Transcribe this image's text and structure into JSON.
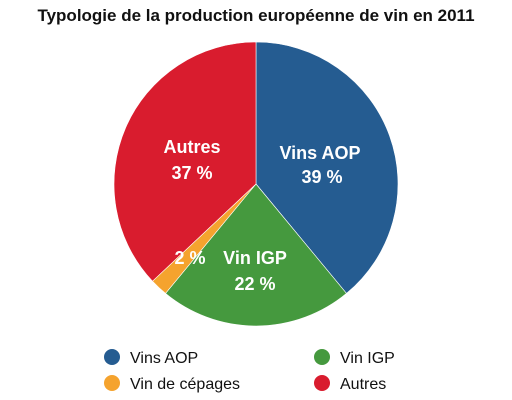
{
  "chart_data": {
    "type": "pie",
    "title": "Typologie de la production européenne de vin en 2011",
    "slices": [
      {
        "name": "Vins AOP",
        "value": 39,
        "label": "39 %",
        "color": "#255c91"
      },
      {
        "name": "Vin IGP",
        "value": 22,
        "label": "22 %",
        "color": "#45993e"
      },
      {
        "name": "Vin de cépages",
        "value": 2,
        "label": "2 %",
        "color": "#f5a32e"
      },
      {
        "name": "Autres",
        "value": 37,
        "label": "37 %",
        "color": "#d91c2e"
      }
    ],
    "legend_position": "bottom"
  }
}
